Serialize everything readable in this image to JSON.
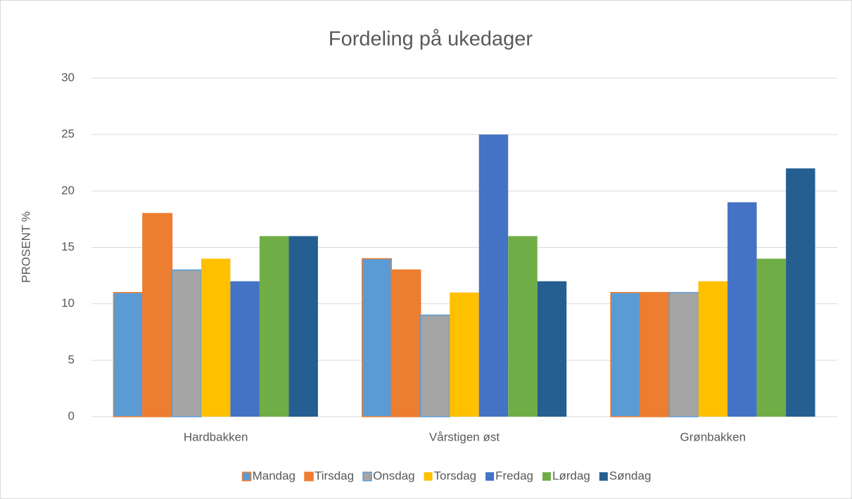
{
  "chart_data": {
    "type": "bar",
    "title": "Fordeling på ukedager",
    "y_label": "PROSENT %",
    "categories": [
      "Hardbakken",
      "Vårstigen øst",
      "Grønbakken"
    ],
    "series": [
      {
        "name": "Mandag",
        "color": "#5b9bd5",
        "border": "#ed7d31",
        "values": [
          11,
          14,
          11
        ]
      },
      {
        "name": "Tirsdag",
        "color": "#ed7d31",
        "border": "#ed7d31",
        "values": [
          18,
          13,
          11
        ]
      },
      {
        "name": "Onsdag",
        "color": "#a5a5a5",
        "border": "#5b9bd5",
        "values": [
          13,
          9,
          11
        ]
      },
      {
        "name": "Torsdag",
        "color": "#ffc000",
        "values": [
          14,
          11,
          12
        ]
      },
      {
        "name": "Fredag",
        "color": "#4472c4",
        "values": [
          12,
          25,
          19
        ]
      },
      {
        "name": "Lørdag",
        "color": "#70ad47",
        "values": [
          16,
          16,
          14
        ]
      },
      {
        "name": "Søndag",
        "color": "#255e91",
        "values": [
          16,
          12,
          22
        ]
      }
    ],
    "ylim": [
      0,
      30
    ],
    "yticks": [
      0,
      5,
      10,
      15,
      20,
      25,
      30
    ],
    "grid": true,
    "legend": "bottom"
  }
}
